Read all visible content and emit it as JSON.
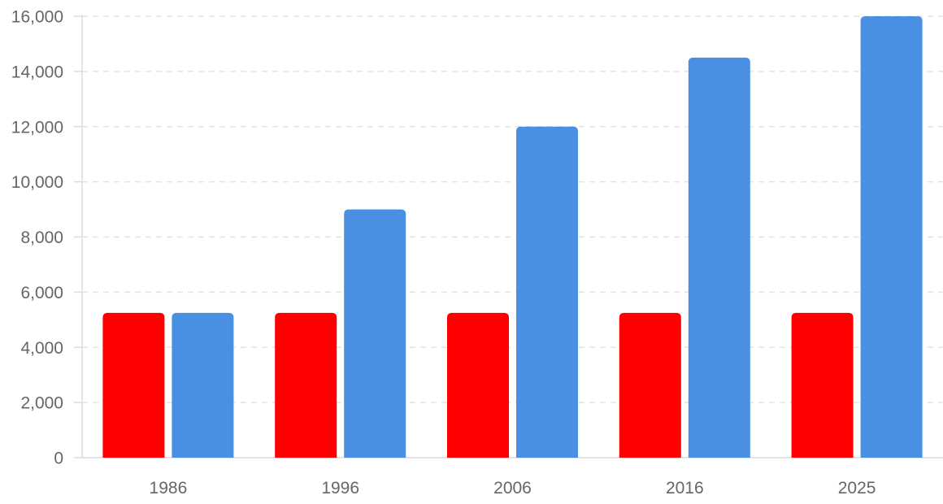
{
  "chart_data": {
    "type": "bar",
    "title": "",
    "xlabel": "",
    "ylabel": "",
    "categories": [
      "1986",
      "1996",
      "2006",
      "2016",
      "2025"
    ],
    "series": [
      {
        "color": "#ff0000",
        "values": [
          5250,
          5250,
          5250,
          5250,
          5250
        ]
      },
      {
        "color": "#4a90e2",
        "values": [
          5250,
          9000,
          12000,
          14500,
          16000
        ]
      }
    ],
    "ylim": [
      0,
      16000
    ],
    "yticks": [
      0,
      2000,
      4000,
      6000,
      8000,
      10000,
      12000,
      14000,
      16000
    ],
    "ytick_labels": [
      "0",
      "2,000",
      "4,000",
      "6,000",
      "8,000",
      "10,000",
      "12,000",
      "14,000",
      "16,000"
    ],
    "grid": true,
    "legend": "none"
  }
}
